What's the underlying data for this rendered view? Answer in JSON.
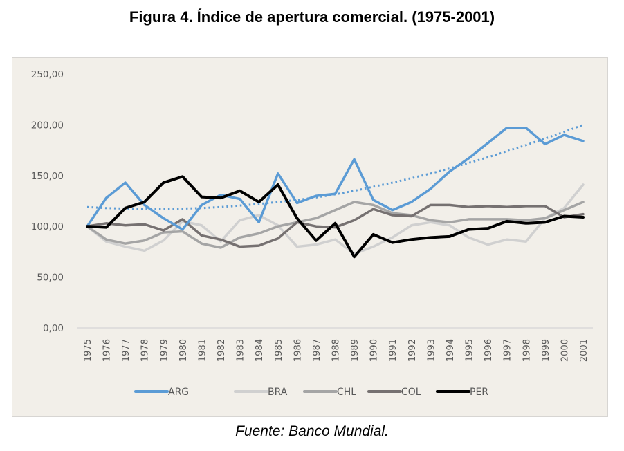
{
  "chart_data": {
    "type": "line",
    "title": "Figura 4. Índice de apertura comercial. (1975-2001)",
    "source": "Fuente: Banco Mundial.",
    "xlabel": "",
    "ylabel": "",
    "ylim": [
      0,
      250
    ],
    "yticks": [
      "0,00",
      "50,00",
      "100,00",
      "150,00",
      "200,00",
      "250,00"
    ],
    "ytick_values": [
      0,
      50,
      100,
      150,
      200,
      250
    ],
    "grid": false,
    "legend_position": "bottom",
    "categories": [
      "1975",
      "1976",
      "1977",
      "1978",
      "1979",
      "1980",
      "1981",
      "1982",
      "1983",
      "1984",
      "1985",
      "1986",
      "1987",
      "1988",
      "1989",
      "1990",
      "1991",
      "1992",
      "1993",
      "1994",
      "1995",
      "1996",
      "1997",
      "1998",
      "1999",
      "2000",
      "2001"
    ],
    "series": [
      {
        "name": "ARG",
        "color": "#5b9bd5",
        "values": [
          100,
          128,
          143,
          121,
          108,
          97,
          121,
          131,
          127,
          104,
          152,
          123,
          130,
          132,
          166,
          126,
          116,
          124,
          137,
          154,
          167,
          182,
          197,
          197,
          181,
          190,
          184
        ]
      },
      {
        "name": "BRA",
        "color": "#d0d0d0",
        "values": [
          100,
          85,
          80,
          76,
          86,
          105,
          101,
          85,
          106,
          111,
          101,
          80,
          82,
          87,
          73,
          80,
          89,
          101,
          104,
          101,
          89,
          82,
          87,
          85,
          108,
          118,
          141
        ]
      },
      {
        "name": "CHL",
        "color": "#a5a5a5",
        "values": [
          100,
          87,
          83,
          86,
          94,
          95,
          83,
          79,
          89,
          93,
          100,
          104,
          108,
          116,
          124,
          121,
          113,
          111,
          106,
          104,
          107,
          107,
          107,
          106,
          108,
          116,
          124
        ]
      },
      {
        "name": "COL",
        "color": "#767171",
        "values": [
          100,
          103,
          101,
          102,
          96,
          107,
          91,
          87,
          80,
          81,
          88,
          104,
          100,
          99,
          106,
          117,
          111,
          110,
          121,
          121,
          119,
          120,
          119,
          120,
          120,
          109,
          112
        ]
      },
      {
        "name": "PER",
        "color": "#000000",
        "values": [
          100,
          99,
          118,
          124,
          143,
          149,
          129,
          128,
          135,
          124,
          141,
          108,
          86,
          103,
          70,
          92,
          84,
          87,
          89,
          90,
          97,
          98,
          105,
          103,
          104,
          110,
          109
        ]
      }
    ],
    "trendline": {
      "series": "ARG",
      "type": "polynomial",
      "style": "dotted",
      "color": "#5b9bd5",
      "values": [
        119,
        118,
        117.5,
        117,
        117,
        117.5,
        118,
        119,
        120.5,
        122,
        124,
        126,
        128.5,
        131.5,
        135,
        139,
        143,
        147.5,
        152,
        157,
        162.5,
        168,
        174,
        180,
        186.5,
        193,
        200
      ]
    }
  }
}
